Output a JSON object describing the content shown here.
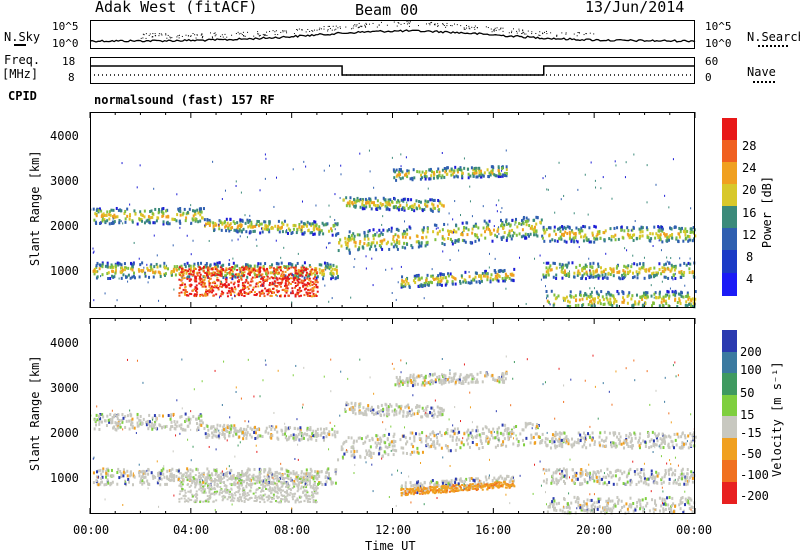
{
  "chart_data": [
    {
      "type": "scatter",
      "title": "Adak West (fitACF)",
      "subtitle": "Beam 00",
      "date": "13/Jun/2014",
      "panel": "noise",
      "left_label": "N.Sky",
      "right_label": "N.Search",
      "left_ticks": [
        "10^5",
        "10^0"
      ],
      "right_ticks": [
        "10^5",
        "10^0"
      ]
    },
    {
      "type": "line",
      "panel": "frequency",
      "left_label": "Freq.",
      "left_unit": "[MHz]",
      "right_label": "Nave",
      "left_ticks": [
        "18",
        "8"
      ],
      "right_ticks": [
        "60",
        "0"
      ],
      "freq_segments": [
        {
          "from_h": 0,
          "to_h": 10,
          "value": 14
        },
        {
          "from_h": 10,
          "to_h": 18,
          "value": 10
        },
        {
          "from_h": 18,
          "to_h": 24,
          "value": 14
        }
      ]
    },
    {
      "type": "table",
      "panel": "cpid",
      "label": "CPID",
      "program": "normalsound (fast) 157 RF"
    },
    {
      "type": "heatmap",
      "panel": "power",
      "ylabel": "Slant Range [km]",
      "ylim": [
        200,
        4500
      ],
      "yticks": [
        "1000",
        "2000",
        "3000",
        "4000"
      ],
      "colorbar_label": "Power [dB]",
      "colorbar_ticks": [
        "28",
        "24",
        "20",
        "16",
        "12",
        "8",
        "4"
      ],
      "colors": [
        "#1b1bd6",
        "#2f5fb0",
        "#3b8a7a",
        "#7fbf3f",
        "#d8c82a",
        "#f0a020",
        "#f06020",
        "#e81818"
      ]
    },
    {
      "type": "heatmap",
      "panel": "velocity",
      "ylabel": "Slant Range [km]",
      "ylim": [
        200,
        4500
      ],
      "yticks": [
        "1000",
        "2000",
        "3000",
        "4000"
      ],
      "colorbar_label": "Velocity [m s⁻¹]",
      "colorbar_ticks": [
        "200",
        "100",
        "50",
        "15",
        "-15",
        "-50",
        "-100",
        "-200"
      ],
      "colors": [
        "#2a3ab0",
        "#3b7aa0",
        "#3f9a60",
        "#7fcf3f",
        "#c8c8c0",
        "#f0a020",
        "#f07020",
        "#e82020"
      ],
      "xlabel": "Time UT",
      "xticks": [
        "00:00",
        "04:00",
        "08:00",
        "12:00",
        "16:00",
        "20:00",
        "00:00"
      ]
    }
  ]
}
